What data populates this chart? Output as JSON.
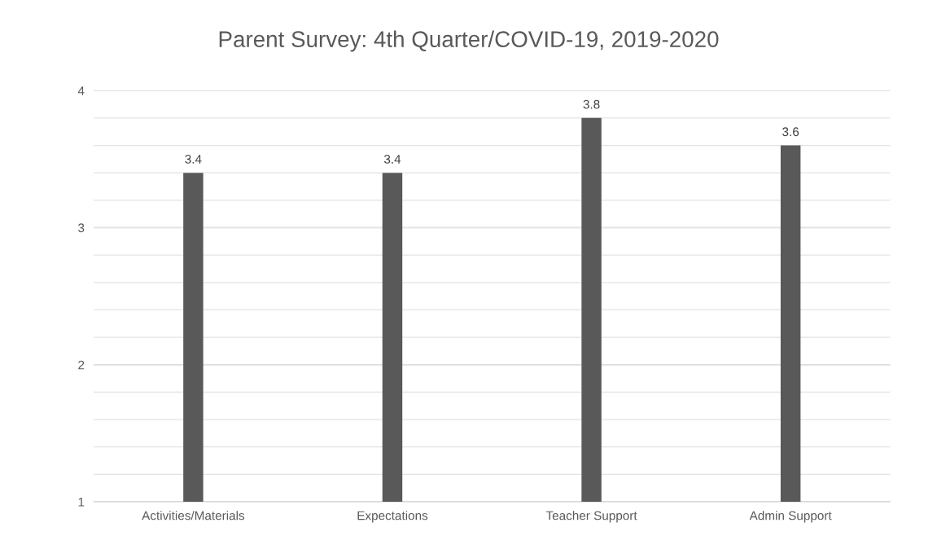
{
  "chart_data": {
    "type": "bar",
    "title": "Parent Survey: 4th Quarter/COVID-19, 2019-2020",
    "categories": [
      "Activities/Materials",
      "Expectations",
      "Teacher Support",
      "Admin Support"
    ],
    "values": [
      3.4,
      3.4,
      3.8,
      3.6
    ],
    "color": "#595959",
    "data_labels": true,
    "ylim": [
      1,
      4
    ],
    "yticks": [
      1,
      {
        "value": 1.2,
        "label": null
      },
      {
        "value": 1.4,
        "label": null
      },
      {
        "value": 1.6,
        "label": null
      },
      {
        "value": 1.8,
        "label": null
      },
      2,
      {
        "value": 2.2,
        "label": null
      },
      {
        "value": 2.4,
        "label": null
      },
      {
        "value": 2.6,
        "label": null
      },
      {
        "value": 2.8,
        "label": null
      },
      3,
      {
        "value": 3.2,
        "label": null
      },
      {
        "value": 3.4,
        "label": null
      },
      {
        "value": 3.6,
        "label": null
      },
      {
        "value": 3.8,
        "label": null
      },
      4
    ],
    "grid": "y",
    "legend": false
  }
}
